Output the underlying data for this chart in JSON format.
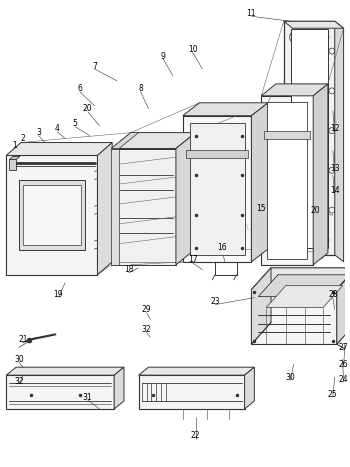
{
  "bg_color": "#ffffff",
  "lc": "#333333",
  "lc_thin": "#666666",
  "figsize": [
    3.5,
    4.67
  ],
  "dpi": 100,
  "label_fs": 5.5
}
